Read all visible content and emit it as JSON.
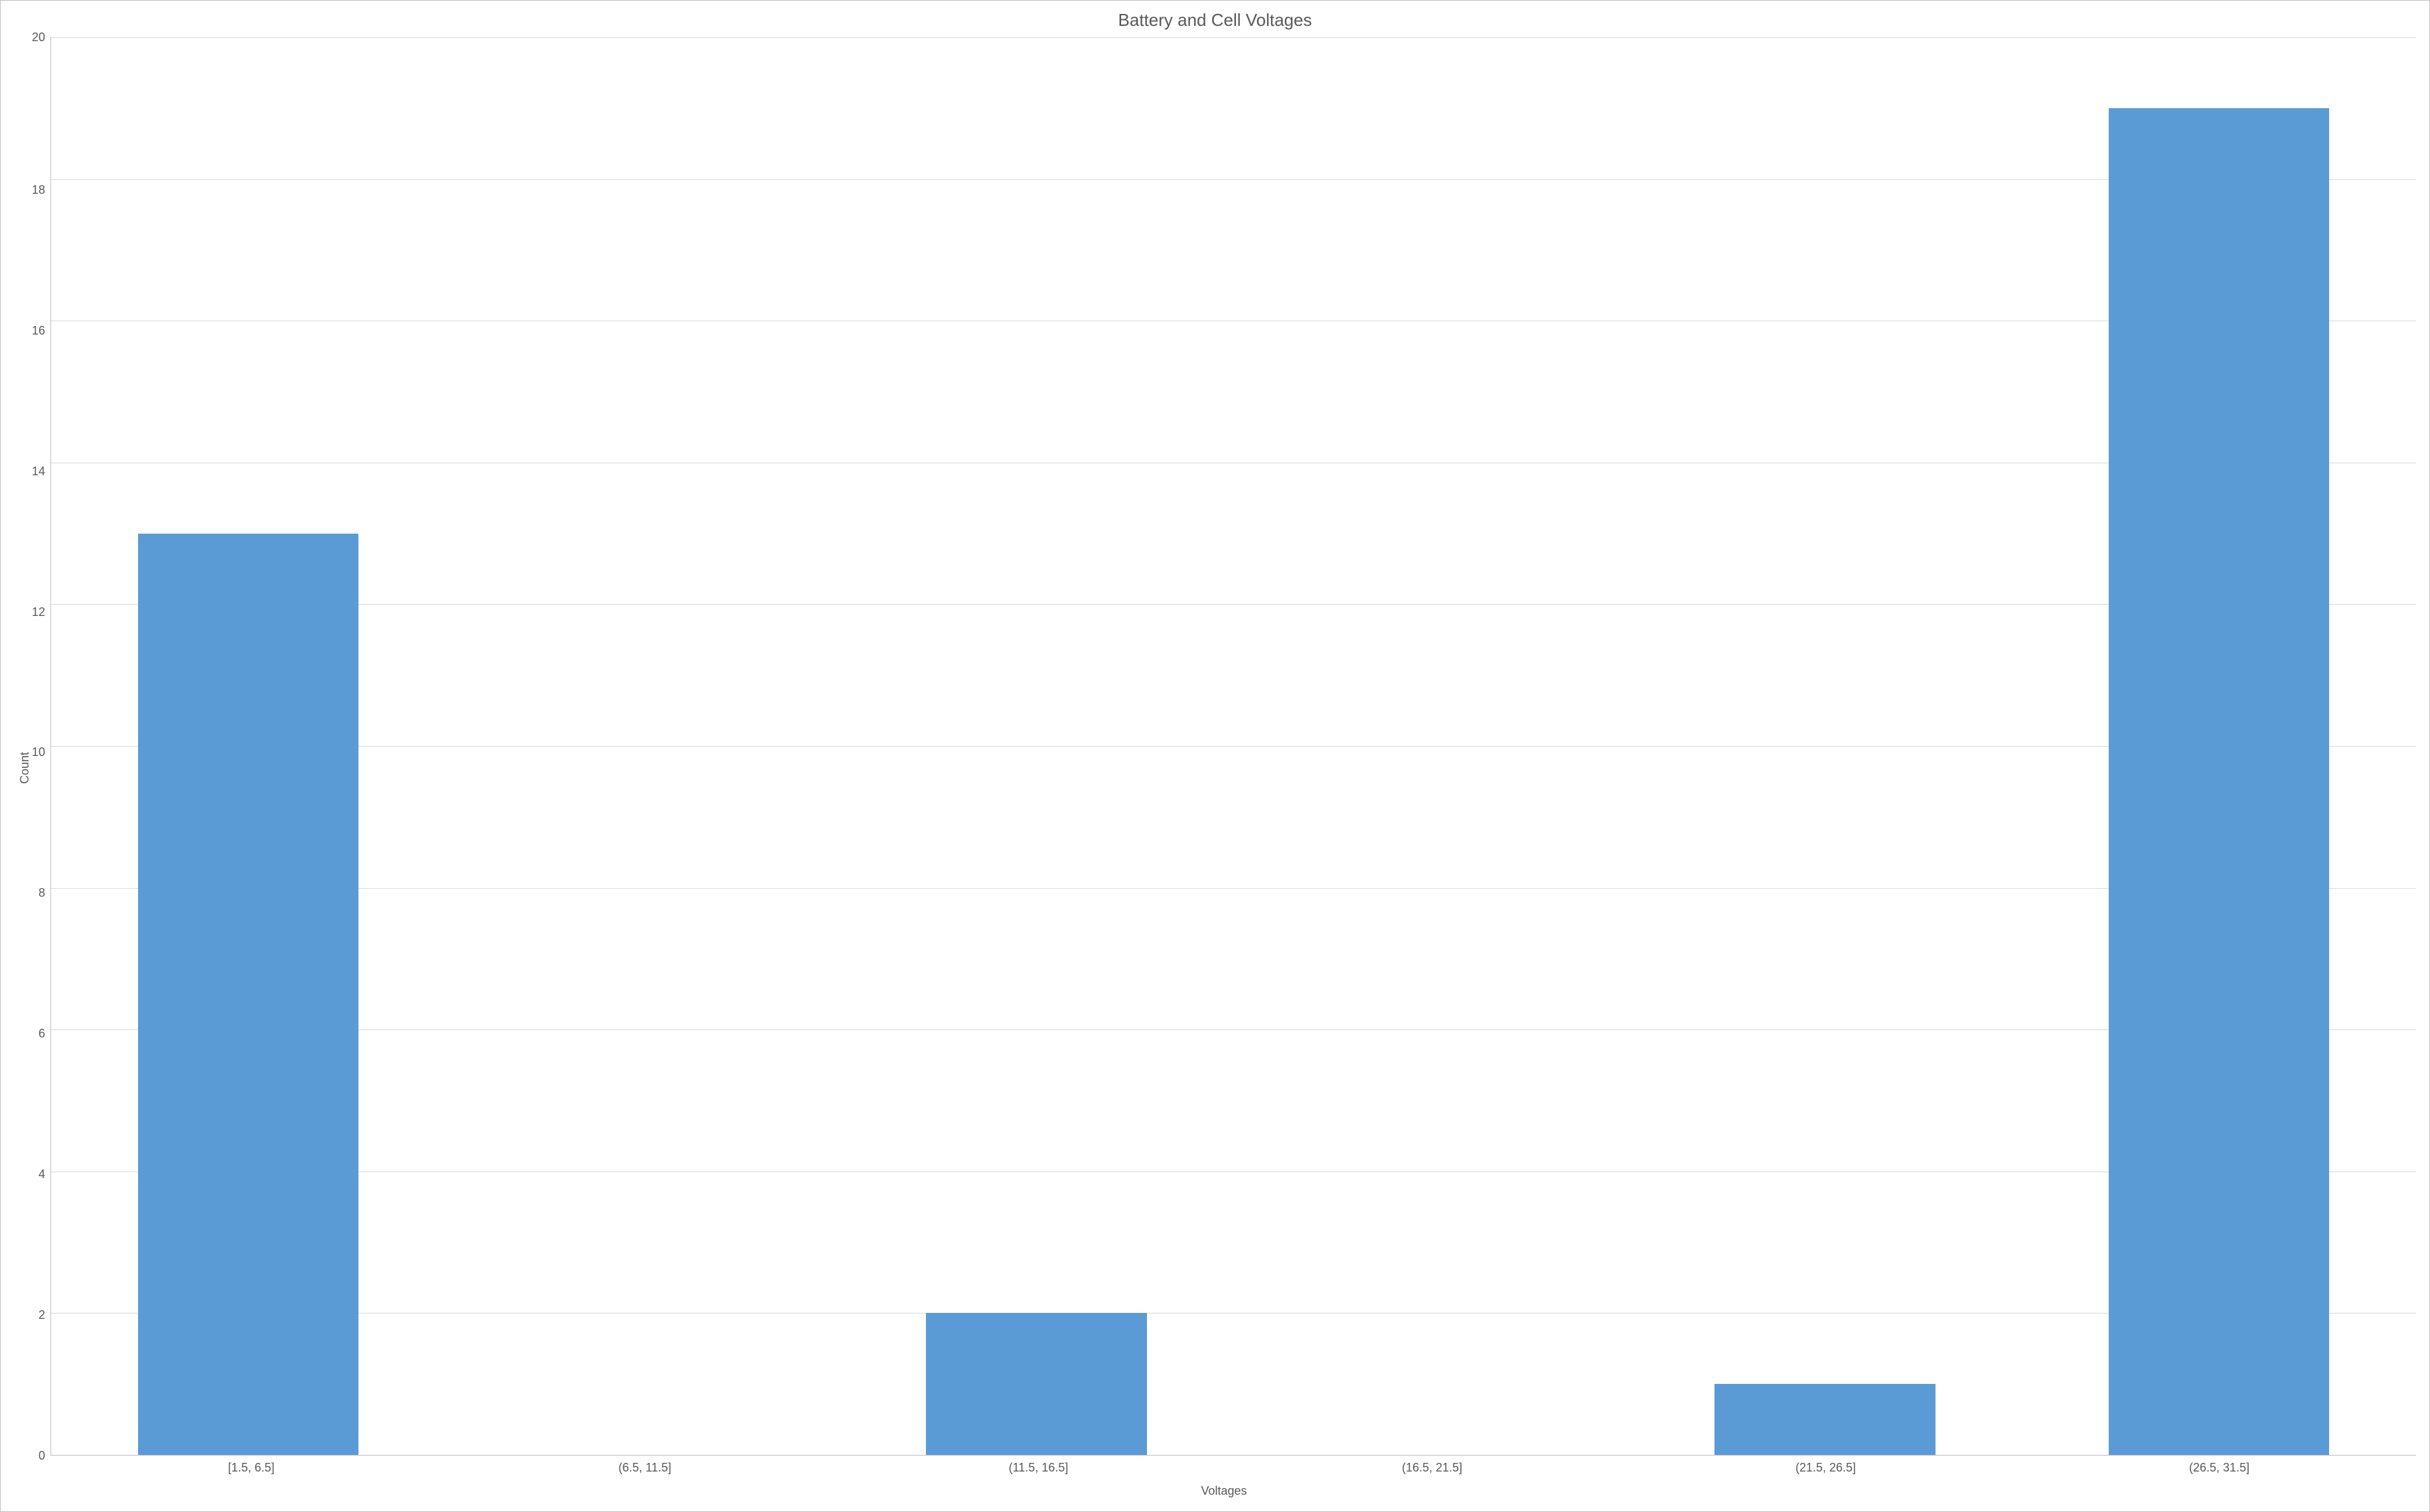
{
  "chart": {
    "type": "bar",
    "title": "Battery and Cell Voltages",
    "title_fontsize": 26,
    "title_color": "#595959",
    "xlabel": "Voltages",
    "ylabel": "Count",
    "label_fontsize": 18,
    "label_color": "#595959",
    "tick_fontsize": 18,
    "tick_color": "#595959",
    "background_color": "#ffffff",
    "border_color": "#bfbfbf",
    "grid_color": "#d9d9d9",
    "bar_color": "#5b9bd5",
    "bar_width": 0.56,
    "ylim": [
      0,
      20
    ],
    "ytick_step": 2,
    "yticks": [
      20,
      18,
      16,
      14,
      12,
      10,
      8,
      6,
      4,
      2,
      0
    ],
    "categories": [
      "[1.5, 6.5]",
      "(6.5, 11.5]",
      "(11.5, 16.5]",
      "(16.5, 21.5]",
      "(21.5, 26.5]",
      "(26.5, 31.5]"
    ],
    "values": [
      13,
      0,
      2,
      0,
      1,
      19
    ]
  }
}
